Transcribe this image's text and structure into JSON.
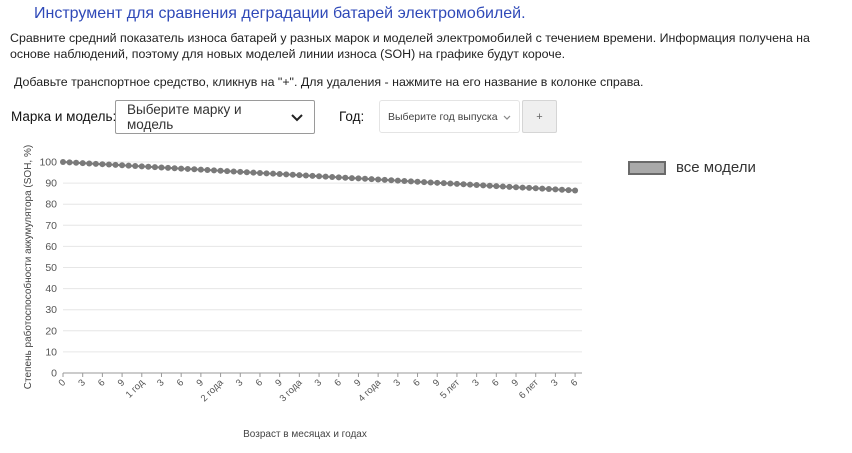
{
  "header": {
    "title": "Инструмент для сравнения деградации батарей электромобилей.",
    "description": "Сравните средний показатель износа батарей у разных марок и моделей электромобилей с течением времени. Информация получена на основе наблюдений, поэтому для новых моделей линии износа (SOH) на графике будут короче.",
    "hint": "Добавьте транспортное средство, кликнув на \"+\". Для удаления - нажмите на его название в колонке справа."
  },
  "controls": {
    "make_label": "Марка и модель:",
    "make_value": "Выберите марку и модель",
    "year_label": "Год:",
    "year_value": "Выберите год выпуска",
    "add_label": "+"
  },
  "chart_data": {
    "type": "line",
    "ylabel": "Степень работоспособности аккумулятора (SOH, %)",
    "xlabel": "Возраст в месяцах и годах",
    "ylim": [
      0,
      100
    ],
    "yticks": [
      0,
      10,
      20,
      30,
      40,
      50,
      60,
      70,
      80,
      90,
      100
    ],
    "xticks": [
      "0",
      "3",
      "6",
      "9",
      "1 год",
      "3",
      "6",
      "9",
      "2 года",
      "3",
      "6",
      "9",
      "3 года",
      "3",
      "6",
      "9",
      "4 года",
      "3",
      "6",
      "9",
      "5 лет",
      "3",
      "6",
      "9",
      "6 лет",
      "3",
      "6"
    ],
    "grid": true,
    "legend_position": "right",
    "series": [
      {
        "name": "все модели",
        "color": "#7a7a7a",
        "x_months": [
          0,
          78
        ],
        "y": [
          100,
          86.5
        ]
      }
    ]
  }
}
